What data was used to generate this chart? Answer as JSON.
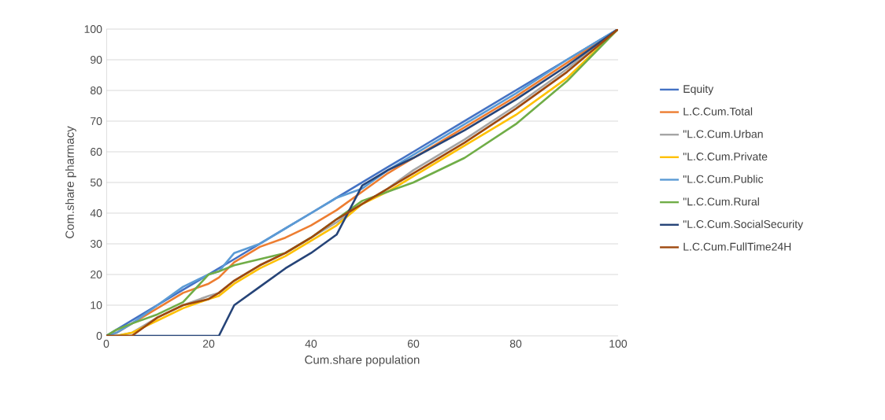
{
  "chart_data": {
    "type": "line",
    "xlabel": "Cum.share population",
    "ylabel": "Com.share pharmacy",
    "x": [
      0,
      2,
      5,
      10,
      15,
      20,
      22,
      25,
      30,
      35,
      40,
      45,
      50,
      55,
      60,
      70,
      80,
      90,
      100
    ],
    "series": [
      {
        "name": "Equity",
        "color": "#4472c4",
        "values": [
          0,
          2,
          5,
          10,
          15,
          20,
          22,
          25,
          30,
          35,
          40,
          45,
          50,
          55,
          60,
          70,
          80,
          90,
          100
        ]
      },
      {
        "name": "L.C.Cum.Total",
        "color": "#ed7d31",
        "values": [
          0,
          1,
          4,
          9,
          14,
          17,
          19,
          24,
          29,
          32,
          36,
          41,
          47,
          53,
          58,
          68,
          78,
          89,
          100
        ]
      },
      {
        "name": "\"L.C.Cum.Urban",
        "color": "#a5a5a5",
        "values": [
          0,
          0,
          1,
          6,
          10,
          13,
          14,
          18,
          23,
          27,
          32,
          37,
          43,
          48,
          54,
          64,
          75,
          87,
          100
        ]
      },
      {
        "name": "\"L.C.Cum.Private",
        "color": "#ffc000",
        "values": [
          0,
          0,
          1,
          5,
          9,
          12,
          13,
          17,
          22,
          26,
          31,
          36,
          43,
          47,
          52,
          62,
          72,
          84,
          100
        ]
      },
      {
        "name": "\"L.C.Cum.Public",
        "color": "#5b9bd5",
        "values": [
          0,
          1,
          4,
          10,
          16,
          20,
          21,
          27,
          30,
          35,
          40,
          45,
          48,
          54,
          59,
          69,
          79,
          90,
          100
        ]
      },
      {
        "name": "\"L.C.Cum.Rural",
        "color": "#70ad47",
        "values": [
          0,
          2,
          4,
          7,
          11,
          20,
          21,
          23,
          25,
          27,
          32,
          38,
          44,
          47,
          50,
          58,
          69,
          83,
          100
        ]
      },
      {
        "name": "\"L.C.Cum.SocialSecurity",
        "color": "#264478",
        "values": [
          0,
          0,
          0,
          0,
          0,
          0,
          0,
          10,
          16,
          22,
          27,
          33,
          49,
          54,
          58,
          67,
          77,
          88,
          100
        ]
      },
      {
        "name": "L.C.Cum.FullTime24H",
        "color": "#9e480e",
        "values": [
          0,
          0,
          0,
          6,
          10,
          12,
          14,
          18,
          23,
          27,
          32,
          38,
          43,
          48,
          53,
          63,
          74,
          86,
          100
        ]
      }
    ],
    "xlim": [
      0,
      100
    ],
    "ylim": [
      0,
      100
    ],
    "xticks": [
      0,
      20,
      40,
      60,
      80,
      100
    ],
    "yticks": [
      0,
      10,
      20,
      30,
      40,
      50,
      60,
      70,
      80,
      90,
      100
    ],
    "grid": "y",
    "legend": "right",
    "marker": "none",
    "line_style": "solid"
  }
}
